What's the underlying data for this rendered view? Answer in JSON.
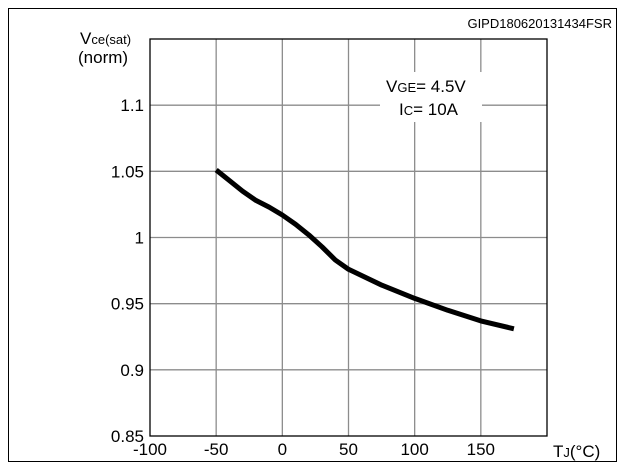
{
  "chart_data": {
    "type": "line",
    "code": "GIPD180620131434FSR",
    "ylabel": {
      "main": "V",
      "sub": "ce(sat)",
      "second_line": "(norm)"
    },
    "xlabel": {
      "main": "T",
      "sub": "J",
      "unit": "(°C)"
    },
    "annotation": [
      {
        "main": "V",
        "sub": "GE",
        "rest": "= 4.5V"
      },
      {
        "main": "I",
        "sub": "C",
        "rest": "= 10A"
      }
    ],
    "xlim": [
      -100,
      200
    ],
    "ylim": [
      0.85,
      1.15
    ],
    "x_ticks": [
      -100,
      -50,
      0,
      50,
      100,
      150
    ],
    "x_tick_labels": [
      "-100",
      "-50",
      "0",
      "50",
      "100",
      "150"
    ],
    "y_ticks": [
      0.85,
      0.9,
      0.95,
      1,
      1.05,
      1.1
    ],
    "y_tick_labels": [
      "0.85",
      "0.9",
      "0.95",
      "1",
      "1.05",
      "1.1"
    ],
    "grid": true,
    "series": [
      {
        "x": [
          -50,
          -40,
          -30,
          -20,
          -10,
          0,
          10,
          20,
          30,
          40,
          50,
          75,
          100,
          125,
          150,
          175
        ],
        "values": [
          1.051,
          1.043,
          1.035,
          1.028,
          1.023,
          1.017,
          1.01,
          1.002,
          0.993,
          0.983,
          0.976,
          0.964,
          0.954,
          0.945,
          0.937,
          0.931
        ]
      }
    ]
  }
}
